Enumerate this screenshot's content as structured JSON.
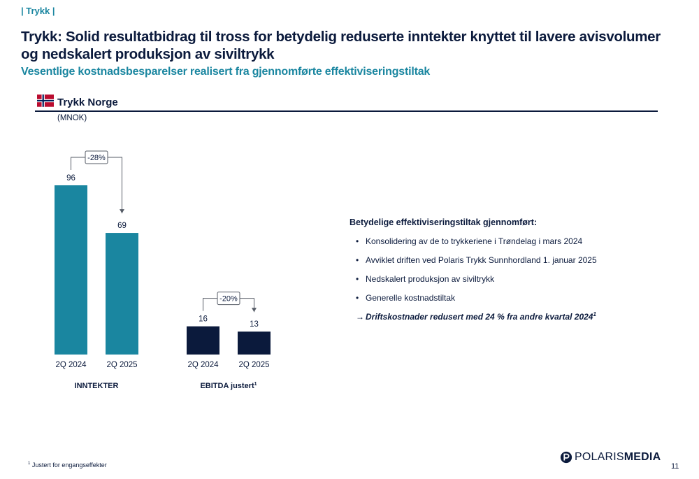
{
  "section_tag": "| Trykk |",
  "title": "Trykk: Solid resultatbidrag til tross for betydelig reduserte inntekter knyttet til lavere avisvolumer og nedskalert produksjon av siviltrykk",
  "subtitle": "Vesentlige kostnadsbesparelser realisert fra gjennomførte effektiviseringstiltak",
  "segment": {
    "title": "Trykk Norge",
    "unit": "(MNOK)"
  },
  "colors": {
    "teal": "#1a86a0",
    "navy": "#0b1a3c"
  },
  "chart_data": [
    {
      "type": "bar",
      "title": "INNTEKTER",
      "categories": [
        "2Q 2024",
        "2Q 2025"
      ],
      "values": [
        96,
        69
      ],
      "data_labels": [
        "96",
        "69"
      ],
      "change_label": "-28%",
      "color": "#1a86a0"
    },
    {
      "type": "bar",
      "title": "EBITDA justert",
      "title_superscript": "1",
      "categories": [
        "2Q 2024",
        "2Q 2025"
      ],
      "values": [
        16,
        13
      ],
      "data_labels": [
        "16",
        "13"
      ],
      "change_label": "-20%",
      "color": "#0b1a3c"
    }
  ],
  "bullets": {
    "heading": "Betydelige effektiviseringstiltak gjennomført:",
    "items": [
      "Konsolidering av de to trykkeriene i Trøndelag i mars 2024",
      "Avviklet driften ved Polaris Trykk Sunnhordland 1. januar 2025",
      "Nedskalert produksjon av siviltrykk",
      "Generelle kostnadstiltak"
    ],
    "bullet_symbol": "•",
    "highlight_symbol": "→",
    "highlight": "Driftskostnader redusert med 24 % fra andre kvartal 2024",
    "highlight_superscript": "1"
  },
  "logo": {
    "part1": "POLARIS",
    "part2": "MEDIA"
  },
  "footnote": {
    "marker": "1",
    "text": "Justert for engangseffekter"
  },
  "page_number": "11"
}
